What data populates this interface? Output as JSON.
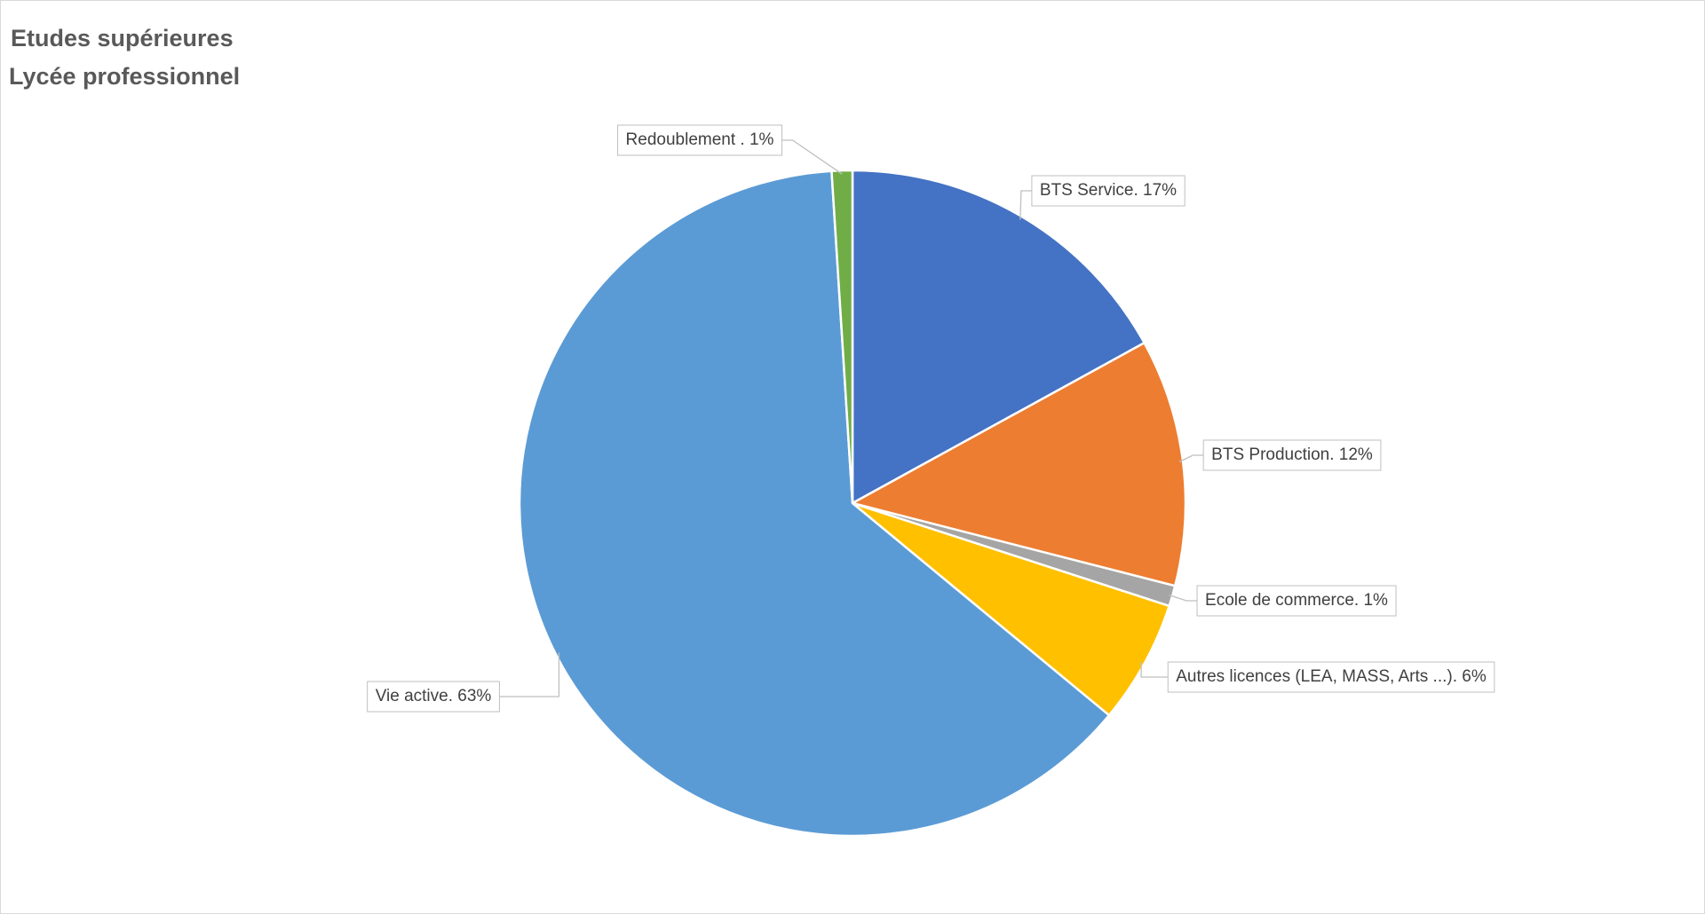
{
  "chart_data": {
    "type": "pie",
    "title": [
      "Etudes supérieures",
      "Lycée professionnel"
    ],
    "categories": [
      "BTS Service. 17%",
      "BTS Production. 12%",
      "Ecole de commerce. 1%",
      "Autres licences (LEA, MASS, Arts ...). 6%",
      "Vie active. 63%",
      "Redoublement . 1%"
    ],
    "values": [
      17,
      12,
      1,
      6,
      63,
      1
    ],
    "colors": [
      "#4472c4",
      "#ed7d31",
      "#a5a5a5",
      "#ffc000",
      "#5b9bd5",
      "#70ad47"
    ]
  }
}
